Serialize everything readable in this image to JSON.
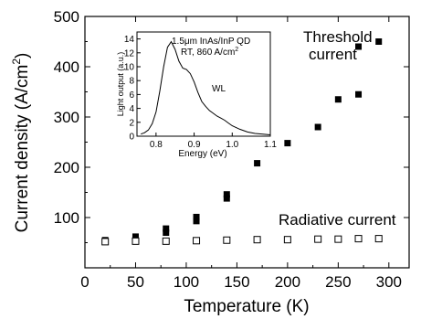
{
  "chart_data": {
    "main": {
      "type": "scatter",
      "xlabel": "Temperature (K)",
      "ylabel_main": "Current density (A/cm",
      "ylabel_sup": "2",
      "ylabel_close": ")",
      "xlim": [
        0,
        320
      ],
      "ylim": [
        0,
        500
      ],
      "x_ticks": [
        0,
        50,
        100,
        150,
        200,
        250,
        300
      ],
      "y_ticks": [
        100,
        200,
        300,
        400,
        500
      ],
      "grid": false,
      "series": [
        {
          "name": "Threshold current",
          "marker": "filled-square",
          "color": "#000000",
          "points": [
            {
              "x": 20,
              "y": 55
            },
            {
              "x": 50,
              "y": 62
            },
            {
              "x": 80,
              "y": 70
            },
            {
              "x": 80,
              "y": 78
            },
            {
              "x": 110,
              "y": 93
            },
            {
              "x": 110,
              "y": 101
            },
            {
              "x": 140,
              "y": 138
            },
            {
              "x": 140,
              "y": 146
            },
            {
              "x": 170,
              "y": 208
            },
            {
              "x": 200,
              "y": 248
            },
            {
              "x": 230,
              "y": 280
            },
            {
              "x": 250,
              "y": 335
            },
            {
              "x": 270,
              "y": 345
            },
            {
              "x": 270,
              "y": 440
            },
            {
              "x": 290,
              "y": 450
            }
          ]
        },
        {
          "name": "Radiative current",
          "marker": "open-square",
          "color": "#000000",
          "points": [
            {
              "x": 20,
              "y": 52
            },
            {
              "x": 50,
              "y": 53
            },
            {
              "x": 80,
              "y": 53
            },
            {
              "x": 110,
              "y": 54
            },
            {
              "x": 140,
              "y": 55
            },
            {
              "x": 170,
              "y": 56
            },
            {
              "x": 200,
              "y": 56
            },
            {
              "x": 230,
              "y": 57
            },
            {
              "x": 250,
              "y": 57
            },
            {
              "x": 270,
              "y": 58
            },
            {
              "x": 290,
              "y": 58
            }
          ]
        }
      ],
      "annotations": {
        "threshold_line1": "Threshold",
        "threshold_line2": "current",
        "radiative": "Radiative current"
      }
    },
    "inset": {
      "type": "line",
      "xlabel": "Energy (eV)",
      "ylabel": "Light output (a.u.)",
      "xlim": [
        0.75,
        1.1
      ],
      "ylim": [
        0,
        15
      ],
      "x_ticks": [
        0.8,
        0.9,
        1.0,
        1.1
      ],
      "x_tick_labels": [
        "0.8",
        "0.9",
        "1.0",
        "1.1"
      ],
      "y_ticks": [
        0,
        2,
        4,
        6,
        8,
        10,
        12,
        14
      ],
      "text_line1": "1.5μm InAs/InP QD",
      "text_line2_main": "RT, 860 A/cm",
      "text_line2_sup": "2",
      "wl_label": "WL",
      "spectrum": {
        "x": [
          0.76,
          0.77,
          0.78,
          0.79,
          0.8,
          0.81,
          0.82,
          0.83,
          0.84,
          0.85,
          0.86,
          0.87,
          0.88,
          0.89,
          0.9,
          0.91,
          0.92,
          0.93,
          0.94,
          0.95,
          0.96,
          0.97,
          0.98,
          0.99,
          1.0,
          1.02,
          1.04,
          1.06,
          1.08,
          1.1
        ],
        "y": [
          0.3,
          0.5,
          0.9,
          1.8,
          3.5,
          6.5,
          10.0,
          12.8,
          13.6,
          12.5,
          10.8,
          9.8,
          9.6,
          9.0,
          7.8,
          6.3,
          5.0,
          4.3,
          3.7,
          3.3,
          2.9,
          2.6,
          2.3,
          1.9,
          1.5,
          1.0,
          0.6,
          0.4,
          0.3,
          0.2
        ]
      }
    }
  }
}
